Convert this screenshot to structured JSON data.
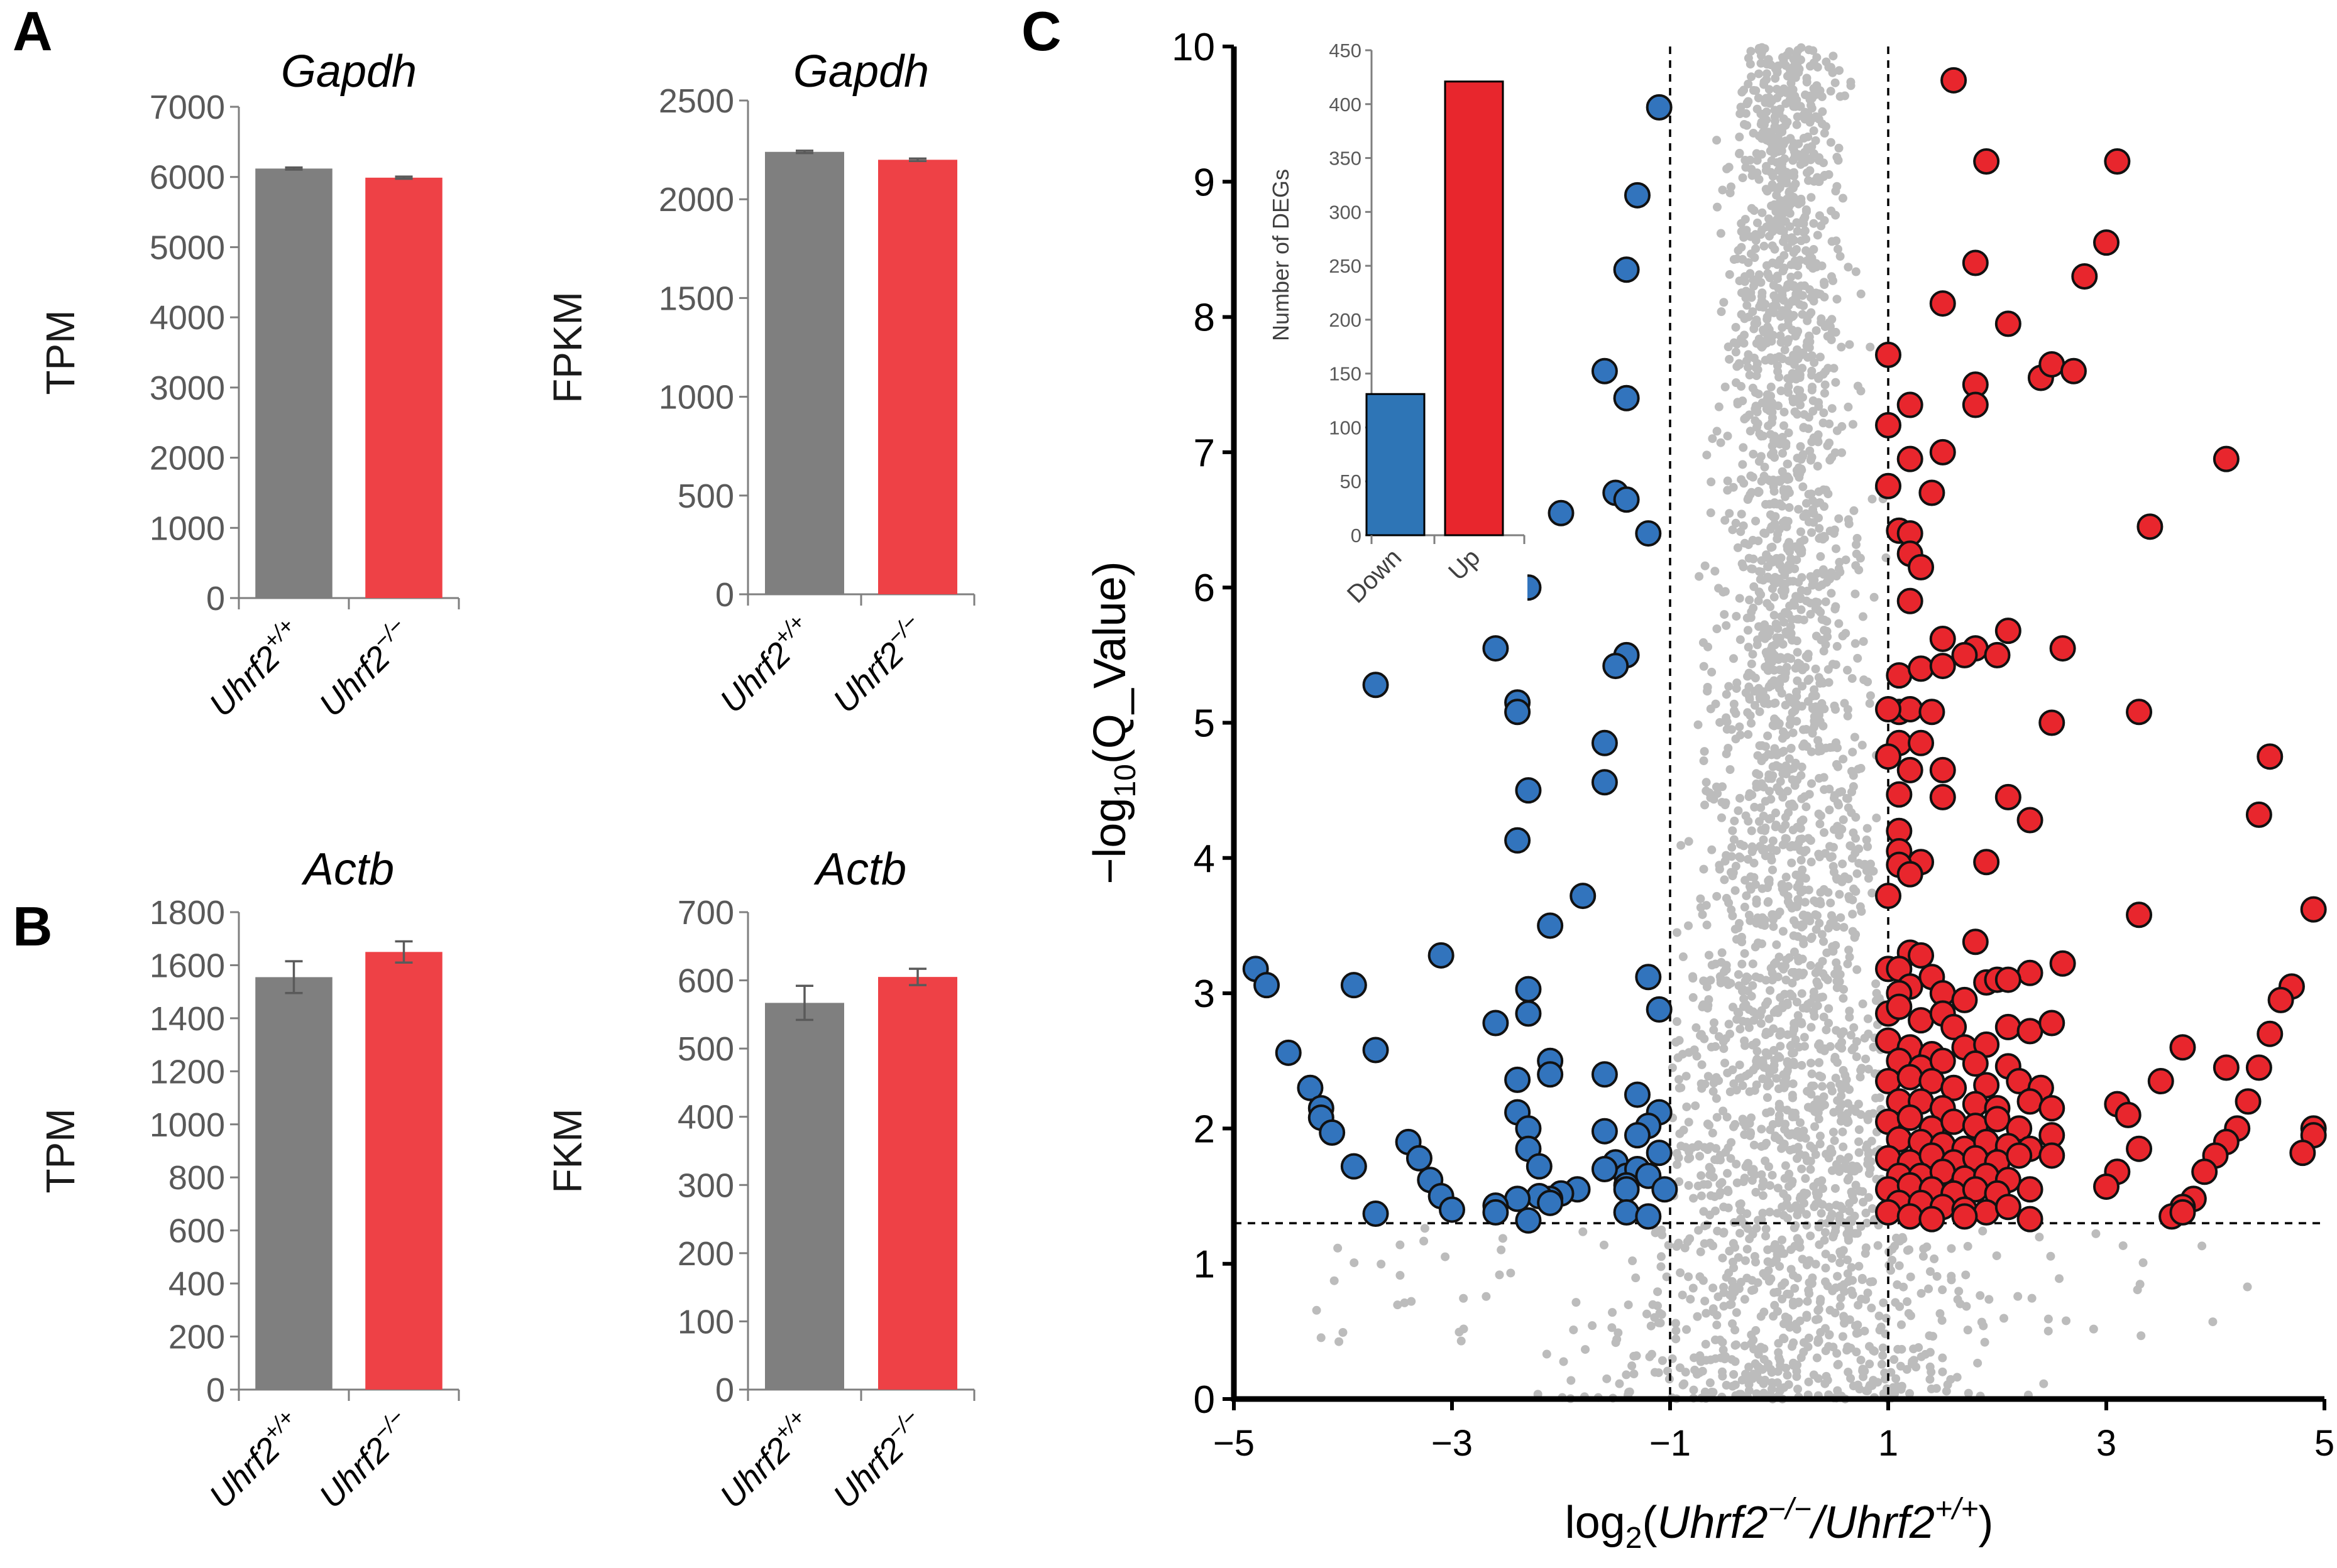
{
  "panel_labels": [
    "A",
    "B",
    "C"
  ],
  "chart_data": [
    {
      "panel": "A",
      "type": "bar",
      "title": "Gapdh",
      "ylabel": "TPM",
      "ylim": [
        0,
        7000
      ],
      "yticks": [
        0,
        1000,
        2000,
        3000,
        4000,
        5000,
        6000,
        7000
      ],
      "categories": [
        {
          "base": "Uhrf2",
          "sup": "+/+"
        },
        {
          "base": "Uhrf2",
          "sup": "−/−"
        }
      ],
      "values": [
        6120,
        5990
      ],
      "errors": [
        15,
        15
      ],
      "colors": [
        "#7f7f7f",
        "#ee4146"
      ]
    },
    {
      "panel": "A",
      "type": "bar",
      "title": "Gapdh",
      "ylabel": "FPKM",
      "ylim": [
        0,
        2500
      ],
      "yticks": [
        0,
        500,
        1000,
        1500,
        2000,
        2500
      ],
      "categories": [
        {
          "base": "Uhrf2",
          "sup": "+/+"
        },
        {
          "base": "Uhrf2",
          "sup": "−/−"
        }
      ],
      "values": [
        2240,
        2200
      ],
      "errors": [
        6,
        6
      ],
      "colors": [
        "#7f7f7f",
        "#ee4146"
      ]
    },
    {
      "panel": "B",
      "type": "bar",
      "title": "Actb",
      "ylabel": "TPM",
      "ylim": [
        0,
        1800
      ],
      "yticks": [
        0,
        200,
        400,
        600,
        800,
        1000,
        1200,
        1400,
        1600,
        1800
      ],
      "categories": [
        {
          "base": "Uhrf2",
          "sup": "+/+"
        },
        {
          "base": "Uhrf2",
          "sup": "−/−"
        }
      ],
      "values": [
        1555,
        1650
      ],
      "errors": [
        60,
        40
      ],
      "colors": [
        "#7f7f7f",
        "#ee4146"
      ]
    },
    {
      "panel": "B",
      "type": "bar",
      "title": "Actb",
      "ylabel": "FKM",
      "ylim": [
        0,
        700
      ],
      "yticks": [
        0,
        100,
        200,
        300,
        400,
        500,
        600,
        700
      ],
      "categories": [
        {
          "base": "Uhrf2",
          "sup": "+/+"
        },
        {
          "base": "Uhrf2",
          "sup": "−/−"
        }
      ],
      "values": [
        567,
        605
      ],
      "errors": [
        25,
        12
      ],
      "colors": [
        "#7f7f7f",
        "#ee4146"
      ]
    },
    {
      "panel": "C",
      "type": "scatter",
      "subtype": "volcano",
      "ylabel": {
        "pre": "−log",
        "sub": "10",
        "post": "(Q_Value)"
      },
      "xlabel": {
        "pre": "log",
        "sub": "2",
        "open": "(",
        "num": "Uhrf2",
        "num_sup": "−/−",
        "slash": "/",
        "den": "Uhrf2",
        "den_sup": "+/+",
        "close": ")"
      },
      "xlim": [
        -5,
        5
      ],
      "ylim": [
        0,
        10
      ],
      "xtick_values": [
        -5,
        -3,
        -1,
        1,
        3,
        5
      ],
      "xtick_labels": [
        "−5",
        "−3",
        "−1",
        "1",
        "3",
        "5"
      ],
      "ytick_values": [
        0,
        1,
        2,
        3,
        4,
        5,
        6,
        7,
        8,
        9,
        10
      ],
      "ytick_labels": [
        "0",
        "1",
        "2",
        "3",
        "4",
        "5",
        "6",
        "7",
        "8",
        "9",
        "10"
      ],
      "thresholds": {
        "x": [
          -1,
          1
        ],
        "y": 1.3
      },
      "colors": {
        "down": "#3274bd",
        "up": "#e8262d",
        "ns": "#bcbcbc",
        "edge": "#111111"
      },
      "down_points": [
        [
          -1.1,
          9.55
        ],
        [
          -1.3,
          8.9
        ],
        [
          -1.4,
          8.35
        ],
        [
          -1.6,
          7.6
        ],
        [
          -1.4,
          7.4
        ],
        [
          -1.5,
          6.7
        ],
        [
          -1.4,
          6.65
        ],
        [
          -1.2,
          6.4
        ],
        [
          -2.0,
          6.55
        ],
        [
          -2.3,
          6.0
        ],
        [
          -2.6,
          5.55
        ],
        [
          -1.4,
          5.5
        ],
        [
          -1.5,
          5.42
        ],
        [
          -3.7,
          5.28
        ],
        [
          -2.4,
          5.15
        ],
        [
          -2.4,
          5.08
        ],
        [
          -1.6,
          4.85
        ],
        [
          -1.6,
          4.56
        ],
        [
          -2.3,
          4.5
        ],
        [
          -2.4,
          4.13
        ],
        [
          -2.1,
          3.5
        ],
        [
          -1.8,
          3.72
        ],
        [
          -3.1,
          3.28
        ],
        [
          -4.8,
          3.18
        ],
        [
          -4.7,
          3.06
        ],
        [
          -3.9,
          3.06
        ],
        [
          -2.3,
          3.03
        ],
        [
          -1.2,
          3.12
        ],
        [
          -1.1,
          2.88
        ],
        [
          -2.3,
          2.85
        ],
        [
          -2.6,
          2.78
        ],
        [
          -3.7,
          2.58
        ],
        [
          -4.5,
          2.56
        ],
        [
          -2.1,
          2.5
        ],
        [
          -2.1,
          2.4
        ],
        [
          -1.6,
          2.4
        ],
        [
          -2.4,
          2.36
        ],
        [
          -1.3,
          2.25
        ],
        [
          -4.3,
          2.3
        ],
        [
          -4.2,
          2.15
        ],
        [
          -4.2,
          2.08
        ],
        [
          -4.1,
          1.97
        ],
        [
          -2.4,
          2.12
        ],
        [
          -2.3,
          2.0
        ],
        [
          -1.6,
          1.98
        ],
        [
          -1.1,
          2.12
        ],
        [
          -1.2,
          2.02
        ],
        [
          -1.3,
          1.95
        ],
        [
          -2.3,
          1.85
        ],
        [
          -3.4,
          1.9
        ],
        [
          -3.3,
          1.78
        ],
        [
          -2.2,
          1.72
        ],
        [
          -1.5,
          1.75
        ],
        [
          -1.4,
          1.65
        ],
        [
          -1.3,
          1.7
        ],
        [
          -1.2,
          1.65
        ],
        [
          -1.1,
          1.82
        ],
        [
          -1.6,
          1.7
        ],
        [
          -3.9,
          1.72
        ],
        [
          -3.2,
          1.62
        ],
        [
          -1.4,
          1.58
        ],
        [
          -1.4,
          1.55
        ],
        [
          -1.05,
          1.55
        ],
        [
          -1.85,
          1.55
        ],
        [
          -2.0,
          1.52
        ],
        [
          -2.1,
          1.48
        ],
        [
          -2.2,
          1.5
        ],
        [
          -3.1,
          1.5
        ],
        [
          -2.4,
          1.48
        ],
        [
          -2.6,
          1.43
        ],
        [
          -2.1,
          1.45
        ],
        [
          -3.7,
          1.37
        ],
        [
          -3.0,
          1.4
        ],
        [
          -2.6,
          1.38
        ],
        [
          -2.3,
          1.32
        ],
        [
          -1.4,
          1.38
        ],
        [
          -1.2,
          1.35
        ]
      ],
      "up_points": [
        [
          1.6,
          9.75
        ],
        [
          1.9,
          9.15
        ],
        [
          3.1,
          9.15
        ],
        [
          3.0,
          8.55
        ],
        [
          2.8,
          8.3
        ],
        [
          1.8,
          8.4
        ],
        [
          1.5,
          8.1
        ],
        [
          2.1,
          7.95
        ],
        [
          1.0,
          7.72
        ],
        [
          2.4,
          7.55
        ],
        [
          2.5,
          7.65
        ],
        [
          2.7,
          7.6
        ],
        [
          1.8,
          7.5
        ],
        [
          1.8,
          7.35
        ],
        [
          1.2,
          7.35
        ],
        [
          1.0,
          7.2
        ],
        [
          1.2,
          6.95
        ],
        [
          1.5,
          7.0
        ],
        [
          1.0,
          6.75
        ],
        [
          1.4,
          6.7
        ],
        [
          4.1,
          6.95
        ],
        [
          1.1,
          6.42
        ],
        [
          1.2,
          6.4
        ],
        [
          3.4,
          6.45
        ],
        [
          1.2,
          6.25
        ],
        [
          1.3,
          6.15
        ],
        [
          1.2,
          5.9
        ],
        [
          1.5,
          5.62
        ],
        [
          1.8,
          5.55
        ],
        [
          1.7,
          5.5
        ],
        [
          2.1,
          5.68
        ],
        [
          2.0,
          5.5
        ],
        [
          2.6,
          5.55
        ],
        [
          1.1,
          5.35
        ],
        [
          1.3,
          5.4
        ],
        [
          1.5,
          5.42
        ],
        [
          1.1,
          5.08
        ],
        [
          1.2,
          5.1
        ],
        [
          1.4,
          5.08
        ],
        [
          1.0,
          5.1
        ],
        [
          3.3,
          5.08
        ],
        [
          2.5,
          5.0
        ],
        [
          1.1,
          4.85
        ],
        [
          1.3,
          4.85
        ],
        [
          1.0,
          4.75
        ],
        [
          1.2,
          4.65
        ],
        [
          4.5,
          4.75
        ],
        [
          1.1,
          4.47
        ],
        [
          1.5,
          4.65
        ],
        [
          1.5,
          4.45
        ],
        [
          2.1,
          4.45
        ],
        [
          2.3,
          4.28
        ],
        [
          4.4,
          4.32
        ],
        [
          1.1,
          4.2
        ],
        [
          1.1,
          4.05
        ],
        [
          1.3,
          3.97
        ],
        [
          1.1,
          3.95
        ],
        [
          1.2,
          3.88
        ],
        [
          1.9,
          3.97
        ],
        [
          1.0,
          3.72
        ],
        [
          3.3,
          3.58
        ],
        [
          4.9,
          3.62
        ],
        [
          1.2,
          3.3
        ],
        [
          1.3,
          3.28
        ],
        [
          1.0,
          3.18
        ],
        [
          1.1,
          3.18
        ],
        [
          1.8,
          3.38
        ],
        [
          1.9,
          3.08
        ],
        [
          2.0,
          3.1
        ],
        [
          2.3,
          3.15
        ],
        [
          2.6,
          3.22
        ],
        [
          2.1,
          3.1
        ],
        [
          1.2,
          3.05
        ],
        [
          1.1,
          3.0
        ],
        [
          1.4,
          3.12
        ],
        [
          1.5,
          3.0
        ],
        [
          1.7,
          2.95
        ],
        [
          4.7,
          3.05
        ],
        [
          4.6,
          2.95
        ],
        [
          1.0,
          2.85
        ],
        [
          1.1,
          2.9
        ],
        [
          1.3,
          2.8
        ],
        [
          1.5,
          2.85
        ],
        [
          1.6,
          2.75
        ],
        [
          2.1,
          2.75
        ],
        [
          2.3,
          2.72
        ],
        [
          2.5,
          2.78
        ],
        [
          4.5,
          2.7
        ],
        [
          1.0,
          2.65
        ],
        [
          1.2,
          2.6
        ],
        [
          1.4,
          2.55
        ],
        [
          1.7,
          2.6
        ],
        [
          1.9,
          2.62
        ],
        [
          3.7,
          2.6
        ],
        [
          1.1,
          2.5
        ],
        [
          1.3,
          2.45
        ],
        [
          1.5,
          2.5
        ],
        [
          1.8,
          2.48
        ],
        [
          2.1,
          2.46
        ],
        [
          4.1,
          2.45
        ],
        [
          4.4,
          2.45
        ],
        [
          1.0,
          2.35
        ],
        [
          1.2,
          2.38
        ],
        [
          1.4,
          2.35
        ],
        [
          1.6,
          2.3
        ],
        [
          1.9,
          2.32
        ],
        [
          2.2,
          2.35
        ],
        [
          2.4,
          2.3
        ],
        [
          3.5,
          2.35
        ],
        [
          1.1,
          2.2
        ],
        [
          1.3,
          2.2
        ],
        [
          1.5,
          2.15
        ],
        [
          1.8,
          2.18
        ],
        [
          2.0,
          2.15
        ],
        [
          2.3,
          2.2
        ],
        [
          2.5,
          2.15
        ],
        [
          3.1,
          2.18
        ],
        [
          4.3,
          2.2
        ],
        [
          1.0,
          2.05
        ],
        [
          1.2,
          2.08
        ],
        [
          1.4,
          2.0
        ],
        [
          1.6,
          2.05
        ],
        [
          1.8,
          2.02
        ],
        [
          2.0,
          2.07
        ],
        [
          2.2,
          2.0
        ],
        [
          2.5,
          1.95
        ],
        [
          3.2,
          2.1
        ],
        [
          4.9,
          2.0
        ],
        [
          4.2,
          2.0
        ],
        [
          1.1,
          1.92
        ],
        [
          1.3,
          1.9
        ],
        [
          1.5,
          1.88
        ],
        [
          1.7,
          1.85
        ],
        [
          1.9,
          1.9
        ],
        [
          2.1,
          1.87
        ],
        [
          2.3,
          1.85
        ],
        [
          4.9,
          1.95
        ],
        [
          4.1,
          1.9
        ],
        [
          1.0,
          1.78
        ],
        [
          1.2,
          1.75
        ],
        [
          1.4,
          1.8
        ],
        [
          1.6,
          1.75
        ],
        [
          1.8,
          1.78
        ],
        [
          2.0,
          1.75
        ],
        [
          2.2,
          1.8
        ],
        [
          2.5,
          1.8
        ],
        [
          3.3,
          1.85
        ],
        [
          4.0,
          1.8
        ],
        [
          4.8,
          1.82
        ],
        [
          1.1,
          1.65
        ],
        [
          1.3,
          1.65
        ],
        [
          1.5,
          1.68
        ],
        [
          1.7,
          1.63
        ],
        [
          1.9,
          1.65
        ],
        [
          2.1,
          1.62
        ],
        [
          3.1,
          1.68
        ],
        [
          3.9,
          1.68
        ],
        [
          1.0,
          1.55
        ],
        [
          1.2,
          1.58
        ],
        [
          1.4,
          1.55
        ],
        [
          1.6,
          1.52
        ],
        [
          1.8,
          1.55
        ],
        [
          2.0,
          1.52
        ],
        [
          2.3,
          1.55
        ],
        [
          3.0,
          1.57
        ],
        [
          3.8,
          1.48
        ],
        [
          1.1,
          1.45
        ],
        [
          1.3,
          1.45
        ],
        [
          1.5,
          1.42
        ],
        [
          1.7,
          1.4
        ],
        [
          1.9,
          1.38
        ],
        [
          2.1,
          1.42
        ],
        [
          3.7,
          1.42
        ],
        [
          1.0,
          1.38
        ],
        [
          1.2,
          1.35
        ],
        [
          1.4,
          1.33
        ],
        [
          1.7,
          1.35
        ],
        [
          2.3,
          1.33
        ],
        [
          3.6,
          1.35
        ],
        [
          3.7,
          1.38
        ]
      ],
      "inset": {
        "type": "bar",
        "ylabel": "Number of DEGs",
        "ylim": [
          0,
          450
        ],
        "yticks": [
          0,
          50,
          100,
          150,
          200,
          250,
          300,
          350,
          400,
          450
        ],
        "categories": [
          "Down",
          "Up"
        ],
        "values": [
          131,
          421
        ],
        "colors": [
          "#2e75b6",
          "#e8262d"
        ]
      }
    }
  ]
}
